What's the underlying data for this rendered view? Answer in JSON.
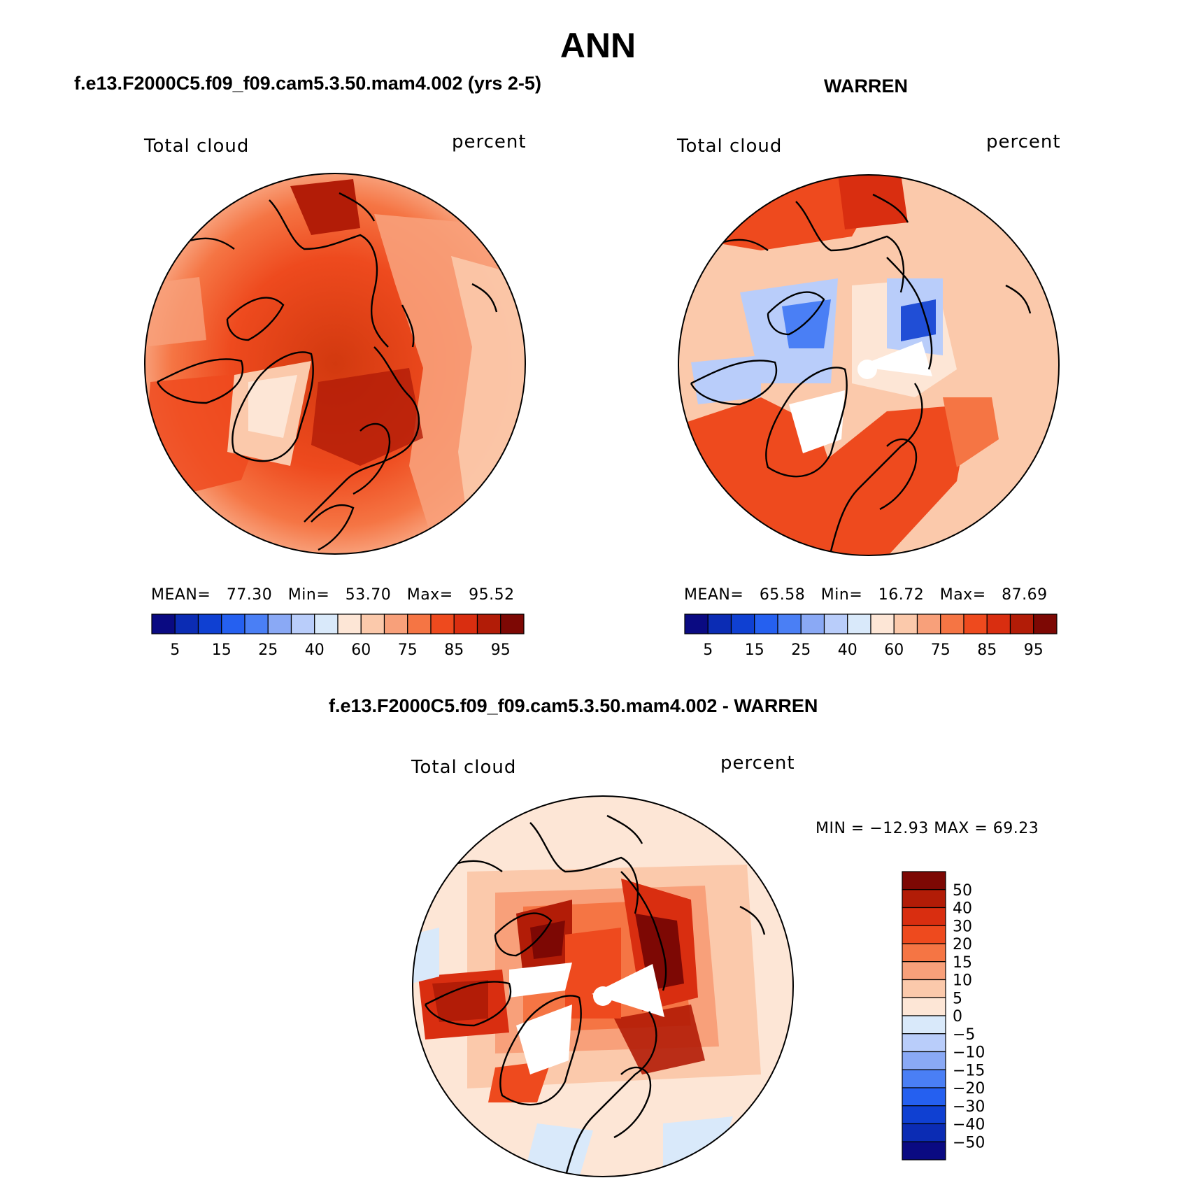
{
  "figure": {
    "title": "ANN"
  },
  "panels": [
    {
      "id": "model",
      "case_title": "f.e13.F2000C5.f09_f09.cam5.3.50.mam4.002 (yrs 2-5)",
      "left_label": "Total cloud",
      "right_label": "percent",
      "stats": {
        "mean_label": "MEAN=",
        "mean": "77.30",
        "min_label": "Min=",
        "min": "53.70",
        "max_label": "Max=",
        "max": "95.52"
      }
    },
    {
      "id": "obs",
      "case_title": "WARREN",
      "left_label": "Total cloud",
      "right_label": "percent",
      "stats": {
        "mean_label": "MEAN=",
        "mean": "65.58",
        "min_label": "Min=",
        "min": "16.72",
        "max_label": "Max=",
        "max": "87.69"
      }
    },
    {
      "id": "diff",
      "case_title": "f.e13.F2000C5.f09_f09.cam5.3.50.mam4.002 - WARREN",
      "left_label": "Total cloud",
      "right_label": "percent",
      "minmax_text": "MIN = −12.93 MAX =   69.23"
    }
  ],
  "abs_colorbar": {
    "colors": [
      "#0a0a82",
      "#0b2cb4",
      "#0f40d2",
      "#2560f0",
      "#4a7ff5",
      "#8aa9f5",
      "#b9cdfa",
      "#d9e9fa",
      "#fde6d6",
      "#fbc9ab",
      "#f8a07a",
      "#f57544",
      "#ee4a1e",
      "#d92e10",
      "#b21c07",
      "#7d0804"
    ],
    "tick_labels": [
      "5",
      "15",
      "25",
      "40",
      "60",
      "75",
      "85",
      "95"
    ]
  },
  "diff_colorbar": {
    "colors": [
      "#7d0804",
      "#b21c07",
      "#d92e10",
      "#ee4a1e",
      "#f57544",
      "#f8a07a",
      "#fbc9ab",
      "#fde6d6",
      "#d9e9fa",
      "#b9cdfa",
      "#8aa9f5",
      "#4a7ff5",
      "#2560f0",
      "#0f40d2",
      "#0b2cb4",
      "#0a0a82"
    ],
    "tick_labels": [
      "50",
      "40",
      "30",
      "20",
      "15",
      "10",
      "5",
      "0",
      "−5",
      "−10",
      "−15",
      "−20",
      "−30",
      "−40",
      "−50"
    ]
  }
}
